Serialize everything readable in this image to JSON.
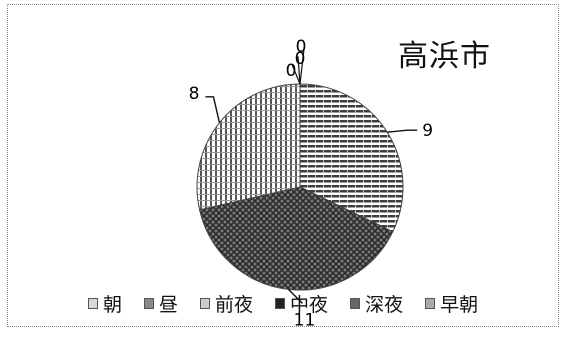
{
  "chart_data": {
    "type": "pie",
    "title": "高浜市",
    "categories": [
      "朝",
      "昼",
      "前夜",
      "中夜",
      "深夜",
      "早朝"
    ],
    "values": [
      0,
      0,
      9,
      11,
      8,
      0
    ],
    "data_labels": [
      "0",
      "0",
      "9",
      "11",
      "8",
      "0"
    ],
    "legend_position": "bottom",
    "start_angle_deg": 0,
    "direction": "clockwise"
  },
  "colors": {
    "stroke": "#444444",
    "background": "#ffffff"
  }
}
